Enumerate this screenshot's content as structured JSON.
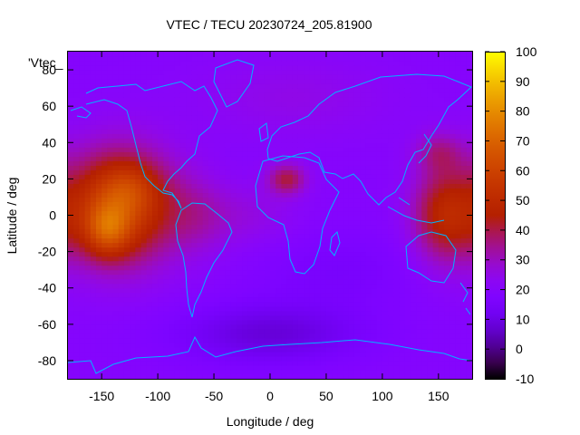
{
  "chart_data": {
    "type": "heatmap",
    "title": "VTEC / TECU 20230724_205.81900",
    "xlabel": "Longitude / deg",
    "ylabel": "Latitude / deg",
    "key_label": "'Vtec_",
    "xlim": [
      -180,
      180
    ],
    "ylim": [
      -90,
      90
    ],
    "x_ticks": [
      -150,
      -100,
      -50,
      0,
      50,
      100,
      150
    ],
    "y_ticks": [
      -80,
      -60,
      -40,
      -20,
      0,
      20,
      40,
      60,
      80
    ],
    "colorbar": {
      "range": [
        -10,
        100
      ],
      "ticks": [
        -10,
        0,
        10,
        20,
        30,
        40,
        50,
        60,
        70,
        80,
        90,
        100
      ]
    },
    "background_value": 20,
    "features": [
      {
        "lon": -135,
        "lat": 5,
        "sigma_lon": 35,
        "sigma_lat": 22,
        "amp": 40
      },
      {
        "lon": -145,
        "lat": -8,
        "sigma_lon": 14,
        "sigma_lat": 10,
        "amp": 22
      },
      {
        "lon": -125,
        "lat": 15,
        "sigma_lon": 18,
        "sigma_lat": 10,
        "amp": 10
      },
      {
        "lon": 155,
        "lat": 0,
        "sigma_lon": 20,
        "sigma_lat": 18,
        "amp": 25
      },
      {
        "lon": 150,
        "lat": 35,
        "sigma_lon": 15,
        "sigma_lat": 8,
        "amp": 12
      },
      {
        "lon": 15,
        "lat": 20,
        "sigma_lon": 12,
        "sigma_lat": 6,
        "amp": 20
      },
      {
        "lon": -65,
        "lat": 0,
        "sigma_lon": 20,
        "sigma_lat": 15,
        "amp": 8
      },
      {
        "lon": -20,
        "lat": 0,
        "sigma_lon": 30,
        "sigma_lat": 12,
        "amp": 6
      },
      {
        "lon": 0,
        "lat": -65,
        "sigma_lon": 60,
        "sigma_lat": 12,
        "amp": -12
      },
      {
        "lon": 60,
        "lat": -30,
        "sigma_lon": 50,
        "sigma_lat": 15,
        "amp": -5
      },
      {
        "lon": 20,
        "lat": 65,
        "sigma_lon": 60,
        "sigma_lat": 15,
        "amp": 5
      }
    ]
  }
}
